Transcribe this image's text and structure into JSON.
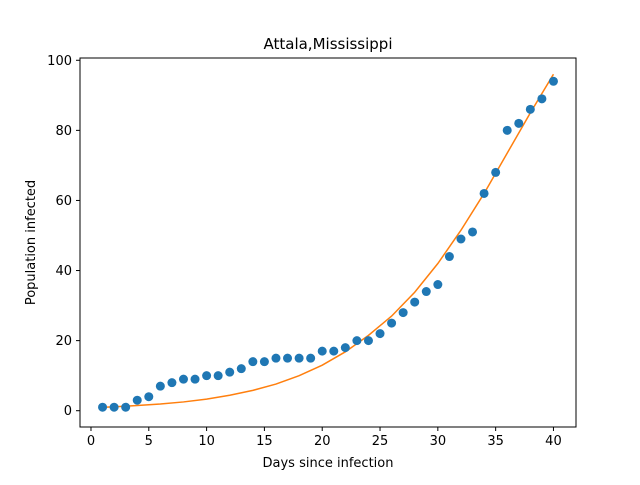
{
  "chart_data": {
    "type": "scatter",
    "title": "Attala,Mississippi",
    "xlabel": "Days since infection",
    "ylabel": "Population infected",
    "xlim": [
      -0.95,
      41.95
    ],
    "ylim": [
      -4.65,
      100.65
    ],
    "x_ticks": [
      0,
      5,
      10,
      15,
      20,
      25,
      30,
      35,
      40
    ],
    "y_ticks": [
      0,
      20,
      40,
      60,
      80,
      100
    ],
    "grid": false,
    "legend": "none",
    "series": [
      {
        "kind": "scatter",
        "color": "#1f77b4",
        "x": [
          1,
          2,
          3,
          4,
          5,
          6,
          7,
          8,
          9,
          10,
          11,
          12,
          13,
          14,
          15,
          16,
          17,
          18,
          19,
          20,
          21,
          22,
          23,
          24,
          25,
          26,
          27,
          28,
          29,
          30,
          31,
          32,
          33,
          34,
          35,
          36,
          37,
          38,
          39,
          40
        ],
        "y": [
          1,
          1,
          1,
          3,
          4,
          7,
          8,
          9,
          9,
          10,
          10,
          11,
          12,
          14,
          14,
          15,
          15,
          15,
          15,
          17,
          17,
          18,
          20,
          20,
          22,
          25,
          28,
          31,
          34,
          36,
          44,
          49,
          51,
          62,
          68,
          80,
          82,
          86,
          89,
          94
        ]
      },
      {
        "kind": "line",
        "color": "#ff7f0e",
        "x": [
          1,
          2,
          3,
          4,
          5,
          6,
          8,
          10,
          12,
          14,
          16,
          18,
          20,
          22,
          24,
          26,
          28,
          30,
          32,
          34,
          36,
          38,
          40
        ],
        "y": [
          1.0,
          1.1,
          1.3,
          1.5,
          1.7,
          1.9,
          2.5,
          3.3,
          4.4,
          5.8,
          7.6,
          10.0,
          13.0,
          16.8,
          21.5,
          27.0,
          33.8,
          42.0,
          51.5,
          62.0,
          73.5,
          85.0,
          96.0
        ]
      }
    ]
  }
}
